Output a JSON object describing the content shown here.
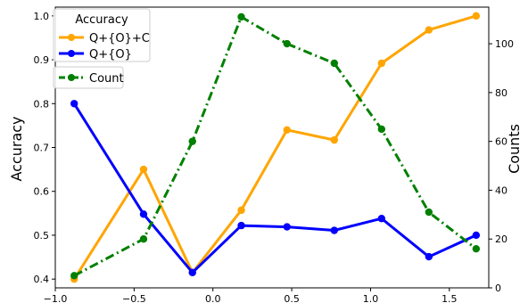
{
  "chart_data": {
    "type": "line",
    "xlim": [
      -1.0,
      1.75
    ],
    "x_ticks": [
      -1.0,
      -0.5,
      0.0,
      0.5,
      1.0,
      1.5
    ],
    "x_tick_labels": [
      "−1.0",
      "−0.5",
      "0.0",
      "0.5",
      "1.0",
      "1.5"
    ],
    "x": [
      -0.88,
      -0.44,
      -0.13,
      0.18,
      0.47,
      0.77,
      1.07,
      1.37,
      1.67
    ],
    "left_axis": {
      "label": "Accuracy",
      "ylim": [
        0.38,
        1.02
      ],
      "ticks": [
        0.4,
        0.5,
        0.6,
        0.7,
        0.8,
        0.9,
        1.0
      ],
      "tick_labels": [
        "0.4",
        "0.5",
        "0.6",
        "0.7",
        "0.8",
        "0.9",
        "1.0"
      ]
    },
    "right_axis": {
      "label": "Counts",
      "ylim": [
        0,
        115
      ],
      "ticks": [
        0,
        20,
        40,
        60,
        80,
        100
      ],
      "tick_labels": [
        "0",
        "20",
        "40",
        "60",
        "80",
        "100"
      ]
    },
    "series": [
      {
        "name": "Q+{O}+C",
        "axis": "left",
        "color": "#FFA500",
        "style": "solid",
        "values": [
          0.4,
          0.65,
          0.415,
          0.557,
          0.74,
          0.717,
          0.892,
          0.968,
          1.0
        ]
      },
      {
        "name": "Q+{O}",
        "axis": "left",
        "color": "#0000FF",
        "style": "solid",
        "values": [
          0.8,
          0.548,
          0.415,
          0.522,
          0.519,
          0.511,
          0.538,
          0.451,
          0.5
        ]
      },
      {
        "name": "Count",
        "axis": "right",
        "color": "#008000",
        "style": "dashdot",
        "values": [
          5,
          20,
          60,
          111,
          100,
          92,
          65,
          31,
          16
        ]
      }
    ],
    "legend_left": {
      "title": "Accuracy",
      "placement": "top-left",
      "entries": [
        "Q+{O}+C",
        "Q+{O}"
      ]
    },
    "legend_right": {
      "placement": "top-left",
      "entries": [
        "Count"
      ]
    }
  }
}
